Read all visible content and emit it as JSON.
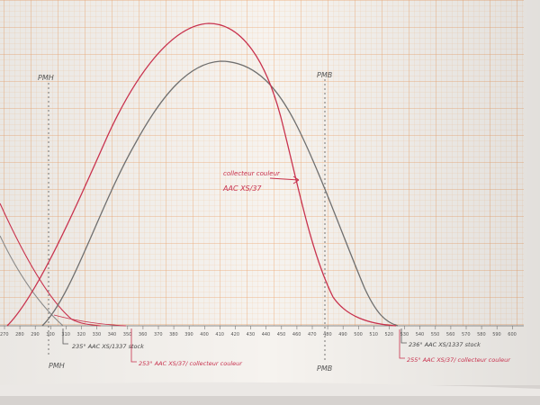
{
  "labels": {
    "pmh_top": "PMH",
    "pmb_top": "PMB",
    "pmh_bottom": "PMH",
    "pmb_bottom": "PMB",
    "annotation_line1": "collecteur couleur",
    "annotation_line2": "AAC XS/37",
    "exhaust_open_note": "235° AAC XS/1337 stock",
    "intake_open_note": "253° AAC XS/37/ collecteur couleur",
    "stock_close_note": "236° AAC XS/1337 stock",
    "red_close_note": "255° AAC XS/37/ collecteur couleur"
  },
  "tick_labels": [
    "270",
    "280",
    "290",
    "300",
    "310",
    "320",
    "330",
    "340",
    "350",
    "360",
    "370",
    "380",
    "390",
    "400",
    "410",
    "420",
    "430",
    "440",
    "450",
    "460",
    "470",
    "480",
    "490",
    "500",
    "510",
    "520",
    "530",
    "540",
    "550",
    "560",
    "570",
    "580",
    "590",
    "600"
  ],
  "colors": {
    "paper": "#f6f3ef",
    "grid_minor": "#f4c9a3",
    "grid_major": "#eea873",
    "pencil": "#6f6f6f",
    "red_ink": "#c8324e"
  }
}
